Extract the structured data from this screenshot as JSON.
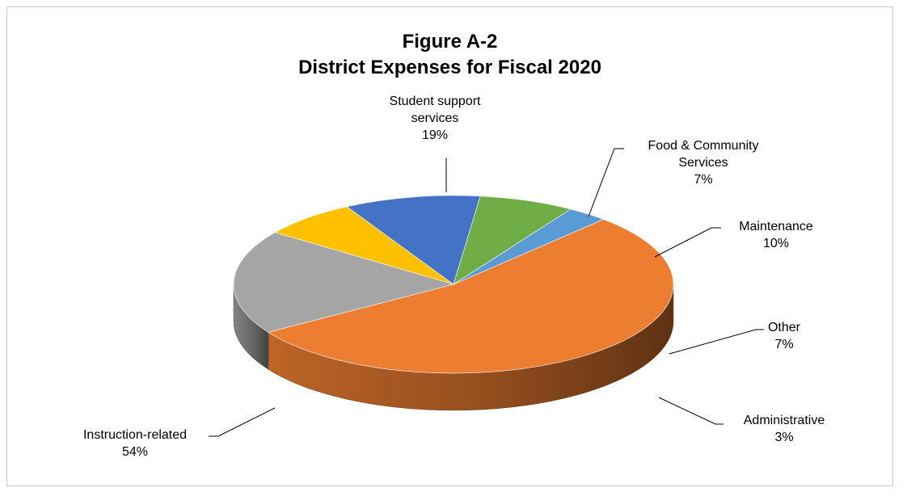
{
  "chart_data": {
    "type": "pie",
    "title": "Figure A-2",
    "subtitle": "District Expenses for Fiscal 2020",
    "legend": "none",
    "slices": [
      {
        "name": "Instruction-related",
        "name_lines": [
          "Instruction-related"
        ],
        "value": 54,
        "label": "54%",
        "color": "#ED7D31"
      },
      {
        "name": "Student support services",
        "name_lines": [
          "Student support",
          "services"
        ],
        "value": 19,
        "label": "19%",
        "color": "#A5A5A5"
      },
      {
        "name": "Food & Community Services",
        "name_lines": [
          "Food & Community",
          "Services"
        ],
        "value": 7,
        "label": "7%",
        "color": "#FFC000"
      },
      {
        "name": "Maintenance",
        "name_lines": [
          "Maintenance"
        ],
        "value": 10,
        "label": "10%",
        "color": "#4472C4"
      },
      {
        "name": "Other",
        "name_lines": [
          "Other"
        ],
        "value": 7,
        "label": "7%",
        "color": "#70AD47"
      },
      {
        "name": "Administrative",
        "name_lines": [
          "Administrative"
        ],
        "value": 3,
        "label": "3%",
        "color": "#5B9BD5"
      }
    ]
  }
}
